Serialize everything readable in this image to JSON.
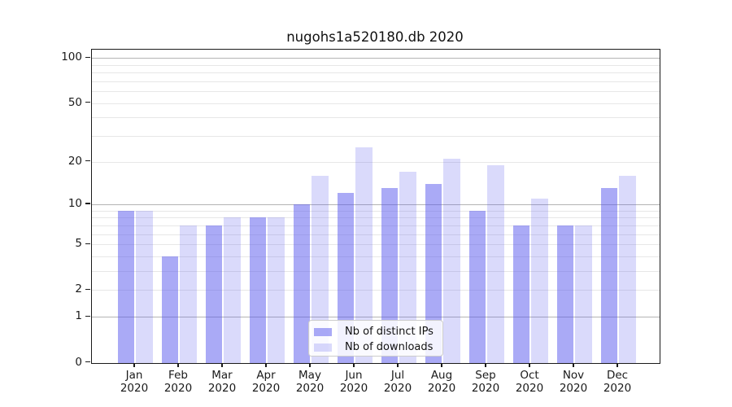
{
  "title": "nugohs1a520180.db 2020",
  "chart_data": {
    "type": "bar",
    "title": "nugohs1a520180.db 2020",
    "categories": [
      "Jan 2020",
      "Feb 2020",
      "Mar 2020",
      "Apr 2020",
      "May 2020",
      "Jun 2020",
      "Jul 2020",
      "Aug 2020",
      "Sep 2020",
      "Oct 2020",
      "Nov 2020",
      "Dec 2020"
    ],
    "x_months": [
      "Jan",
      "Feb",
      "Mar",
      "Apr",
      "May",
      "Jun",
      "Jul",
      "Aug",
      "Sep",
      "Oct",
      "Nov",
      "Dec"
    ],
    "x_year": "2020",
    "series": [
      {
        "name": "Nb of distinct IPs",
        "values": [
          9,
          4,
          7,
          8,
          10,
          12,
          13,
          14,
          9,
          7,
          7,
          13
        ]
      },
      {
        "name": "Nb of downloads",
        "values": [
          9,
          7,
          8,
          8,
          16,
          25,
          17,
          21,
          19,
          11,
          7,
          16
        ]
      }
    ],
    "xlabel": "",
    "ylabel": "",
    "y_axis": {
      "scale": "log1p",
      "tick_labels": [
        "100",
        "50",
        "20",
        "10",
        "5",
        "2",
        "1",
        "0"
      ],
      "tick_values": [
        100,
        50,
        20,
        10,
        5,
        2,
        1,
        0
      ],
      "major_grid_values": [
        1,
        10,
        100
      ],
      "minor_grid_values": [
        2,
        3,
        4,
        5,
        6,
        7,
        8,
        9,
        20,
        30,
        40,
        50,
        60,
        70,
        80,
        90
      ],
      "ylim": [
        0,
        113
      ]
    },
    "grid": true,
    "legend_position": "lower center"
  },
  "legend": {
    "items": [
      {
        "label": "Nb of distinct IPs",
        "series_index": 0
      },
      {
        "label": "Nb of downloads",
        "series_index": 1
      }
    ]
  },
  "colors": {
    "bar_base": "#5555ee",
    "bar_ips": "rgba(85,85,238,0.5)",
    "bar_downloads": "rgba(85,85,238,0.22)",
    "grid_major": "#b4b4b4",
    "grid_minor": "#e7e7e7",
    "spine": "#1a1a1a",
    "text": "#111111",
    "legend_border": "#cccccc",
    "legend_bg": "rgba(255,255,255,0.85)"
  }
}
